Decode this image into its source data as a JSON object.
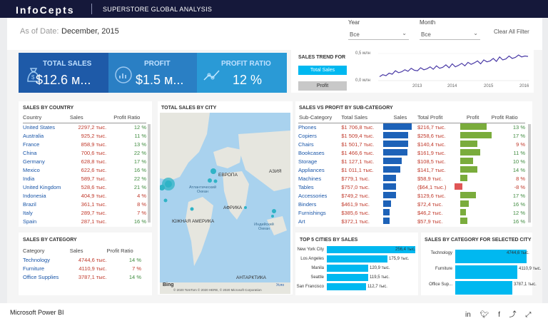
{
  "header": {
    "logo": "InfoCepts",
    "title": "SUPERSTORE GLOBAL ANALYSIS"
  },
  "asof": {
    "label": "As of Date:",
    "value": "December, 2015"
  },
  "filters": {
    "year_label": "Year",
    "year_value": "Все",
    "month_label": "Month",
    "month_value": "Все",
    "clear": "Clear All Filter"
  },
  "kpis": {
    "sales_label": "TOTAL SALES",
    "sales_value": "$12.6 м...",
    "profit_label": "PROFIT",
    "profit_value": "$1.5 м...",
    "ratio_label": "PROFIT RATIO",
    "ratio_value": "12 %",
    "colors": {
      "sales": "#1e5aa8",
      "profit": "#2a7fc4",
      "ratio": "#2a9ad6"
    }
  },
  "trend": {
    "title": "SALES TREND FOR",
    "btn_sales": "Total Sales",
    "btn_profit": "Profit",
    "y_labels": [
      "0,5 млн",
      "0,0 млн"
    ],
    "x_labels": [
      "2013",
      "2014",
      "2015",
      "2016"
    ]
  },
  "chart_data": {
    "type": "line",
    "title": "SALES TREND FOR",
    "x_ticks": [
      "2013",
      "2014",
      "2015",
      "2016"
    ],
    "ylim": [
      0,
      0.55
    ],
    "values": [
      0.08,
      0.12,
      0.1,
      0.15,
      0.13,
      0.2,
      0.16,
      0.18,
      0.22,
      0.19,
      0.25,
      0.21,
      0.2,
      0.26,
      0.22,
      0.24,
      0.28,
      0.23,
      0.3,
      0.25,
      0.27,
      0.32,
      0.26,
      0.34,
      0.28,
      0.31,
      0.35,
      0.3,
      0.37,
      0.33,
      0.36,
      0.4,
      0.34,
      0.42,
      0.38,
      0.4,
      0.45,
      0.39,
      0.48,
      0.42,
      0.44,
      0.5,
      0.45,
      0.47,
      0.52,
      0.48,
      0.5,
      0.49
    ]
  },
  "sales_country": {
    "title": "SALES BY COUNTRY",
    "headers": [
      "Country",
      "Sales",
      "Profit Ratio"
    ],
    "rows": [
      {
        "c": "United States",
        "s": "2297,2 тыс.",
        "p": "12 %"
      },
      {
        "c": "Australia",
        "s": "925,2 тыс.",
        "p": "11 %"
      },
      {
        "c": "France",
        "s": "858,9 тыс.",
        "p": "13 %"
      },
      {
        "c": "China",
        "s": "700,6 тыс.",
        "p": "22 %"
      },
      {
        "c": "Germany",
        "s": "628,8 тыс.",
        "p": "17 %"
      },
      {
        "c": "Mexico",
        "s": "622,6 тыс.",
        "p": "16 %"
      },
      {
        "c": "India",
        "s": "589,7 тыс.",
        "p": "22 %"
      },
      {
        "c": "United Kingdom",
        "s": "528,6 тыс.",
        "p": "21 %"
      },
      {
        "c": "Indonesia",
        "s": "404,9 тыс.",
        "p": "4 %"
      },
      {
        "c": "Brazil",
        "s": "361,1 тыс.",
        "p": "8 %"
      },
      {
        "c": "Italy",
        "s": "289,7 тыс.",
        "p": "7 %"
      },
      {
        "c": "Spain",
        "s": "287,1 тыс.",
        "p": "16 %"
      }
    ]
  },
  "map": {
    "title": "TOTAL SALES BY CITY",
    "labels": {
      "europe": "ЕВРОПА",
      "asia": "АЗИЯ",
      "atlantic": "Атлантический Океан",
      "africa": "АФРИКА",
      "samerica": "ЮЖНАЯ АМЕРИКА",
      "indian": "Индийский Океан",
      "antarctica": "АНТАРКТИКА"
    },
    "bing": "Bing",
    "credits": "© 2020 TomTom © 2020 HERE, © 2020 Microsoft Corporation",
    "terms": "Усло"
  },
  "subcat": {
    "title": "SALES VS PROFIT BY SUB-CATEGORY",
    "headers": [
      "Sub-Category",
      "Total Sales",
      "Sales",
      "Total Profit",
      "Profit",
      "Profit Ratio"
    ],
    "rows": [
      {
        "n": "Phones",
        "ts": "$1 706,8 тыс.",
        "sv": 1706.8,
        "tp": "$216,7 тыс.",
        "pv": 216.7,
        "r": "13 %"
      },
      {
        "n": "Copiers",
        "ts": "$1 509,4 тыс.",
        "sv": 1509.4,
        "tp": "$258,6 тыс.",
        "pv": 258.6,
        "r": "17 %"
      },
      {
        "n": "Chairs",
        "ts": "$1 501,7 тыс.",
        "sv": 1501.7,
        "tp": "$140,4 тыс.",
        "pv": 140.4,
        "r": "9 %"
      },
      {
        "n": "Bookcases",
        "ts": "$1 466,6 тыс.",
        "sv": 1466.6,
        "tp": "$161,9 тыс.",
        "pv": 161.9,
        "r": "11 %"
      },
      {
        "n": "Storage",
        "ts": "$1 127,1 тыс.",
        "sv": 1127.1,
        "tp": "$108,5 тыс.",
        "pv": 108.5,
        "r": "10 %"
      },
      {
        "n": "Appliances",
        "ts": "$1 011,1 тыс.",
        "sv": 1011.1,
        "tp": "$141,7 тыс.",
        "pv": 141.7,
        "r": "14 %"
      },
      {
        "n": "Machines",
        "ts": "$779,1 тыс.",
        "sv": 779.1,
        "tp": "$58,9 тыс.",
        "pv": 58.9,
        "r": "8 %"
      },
      {
        "n": "Tables",
        "ts": "$757,0 тыс.",
        "sv": 757.0,
        "tp": "($64,1 тыс.)",
        "pv": -64.1,
        "r": "-8 %"
      },
      {
        "n": "Accessories",
        "ts": "$749,2 тыс.",
        "sv": 749.2,
        "tp": "$129,6 тыс.",
        "pv": 129.6,
        "r": "17 %"
      },
      {
        "n": "Binders",
        "ts": "$461,9 тыс.",
        "sv": 461.9,
        "tp": "$72,4 тыс.",
        "pv": 72.4,
        "r": "16 %"
      },
      {
        "n": "Furnishings",
        "ts": "$385,6 тыс.",
        "sv": 385.6,
        "tp": "$46,2 тыс.",
        "pv": 46.2,
        "r": "12 %"
      },
      {
        "n": "Art",
        "ts": "$372,1 тыс.",
        "sv": 372.1,
        "tp": "$57,9 тыс.",
        "pv": 57.9,
        "r": "16 %"
      }
    ]
  },
  "category": {
    "title": "SALES BY CATEGORY",
    "headers": [
      "Category",
      "Sales",
      "Profit Ratio"
    ],
    "rows": [
      {
        "c": "Technology",
        "s": "4744,6 тыс.",
        "p": "14 %"
      },
      {
        "c": "Furniture",
        "s": "4110,9 тыс.",
        "p": "7 %"
      },
      {
        "c": "Office Supplies",
        "s": "3787,1 тыс.",
        "p": "14 %"
      }
    ]
  },
  "cities": {
    "title": "TOP 5 CITIES BY SALES",
    "rows": [
      {
        "n": "New York City",
        "v": 256.4,
        "l": "256,4 тыс."
      },
      {
        "n": "Los Angeles",
        "v": 175.9,
        "l": "175,9 тыс."
      },
      {
        "n": "Manila",
        "v": 120.9,
        "l": "120,9 тыс."
      },
      {
        "n": "Seattle",
        "v": 119.5,
        "l": "119,5 тыс."
      },
      {
        "n": "San Francisco",
        "v": 112.7,
        "l": "112,7 тыс."
      }
    ]
  },
  "selcat": {
    "title": "SALES BY CATEGORY FOR SELECTED CITY",
    "rows": [
      {
        "n": "Technology",
        "v": 4744.6,
        "l": "4744,6 тыс."
      },
      {
        "n": "Furniture",
        "v": 4110.9,
        "l": "4110,9 тыс."
      },
      {
        "n": "Office Sup...",
        "v": 3787.1,
        "l": "3787,1 тыс."
      }
    ]
  },
  "footer": {
    "text": "Microsoft Power BI"
  }
}
